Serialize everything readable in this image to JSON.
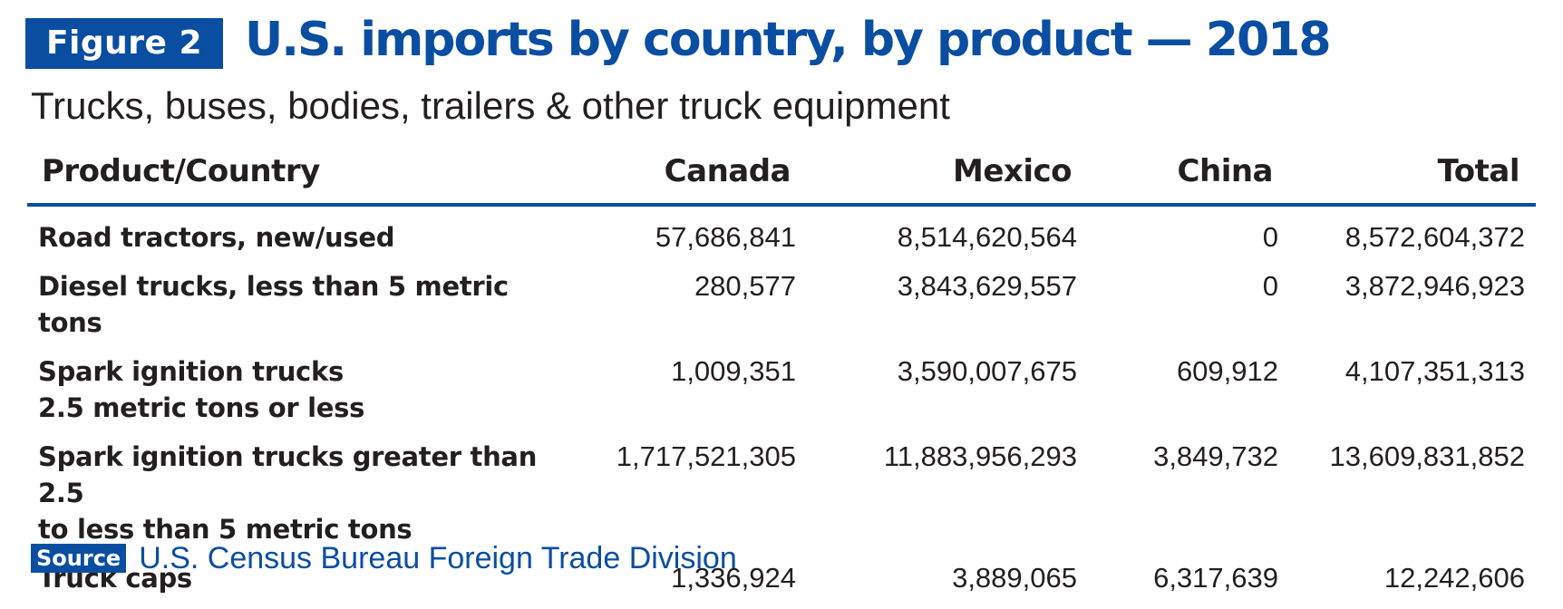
{
  "figure_label": "Figure 2",
  "title": "U.S. imports by country, by product — 2018",
  "subtitle": "Trucks, buses, bodies, trailers & other truck equipment",
  "source": {
    "label": "Source",
    "text": "U.S. Census Bureau Foreign Trade Division"
  },
  "colors": {
    "accent": "#0a4ea2",
    "text": "#231f20"
  },
  "chart_data": {
    "type": "table",
    "columns": [
      "Product/Country",
      "Canada",
      "Mexico",
      "China",
      "Total"
    ],
    "rows": [
      {
        "product_lines": [
          "Road tractors, new/used"
        ],
        "values": [
          "57,686,841",
          "8,514,620,564",
          "0",
          "8,572,604,372"
        ]
      },
      {
        "product_lines": [
          "Diesel trucks, less than 5 metric tons"
        ],
        "values": [
          "280,577",
          "3,843,629,557",
          "0",
          "3,872,946,923"
        ]
      },
      {
        "product_lines": [
          "Spark ignition trucks",
          "2.5 metric tons or less"
        ],
        "values": [
          "1,009,351",
          "3,590,007,675",
          "609,912",
          "4,107,351,313"
        ]
      },
      {
        "product_lines": [
          "Spark ignition trucks greater than 2.5",
          "to less than 5 metric tons"
        ],
        "values": [
          "1,717,521,305",
          "11,883,956,293",
          "3,849,732",
          "13,609,831,852"
        ]
      },
      {
        "product_lines": [
          "Truck caps"
        ],
        "values": [
          "1,336,924",
          "3,889,065",
          "6,317,639",
          "12,242,606"
        ]
      }
    ]
  }
}
